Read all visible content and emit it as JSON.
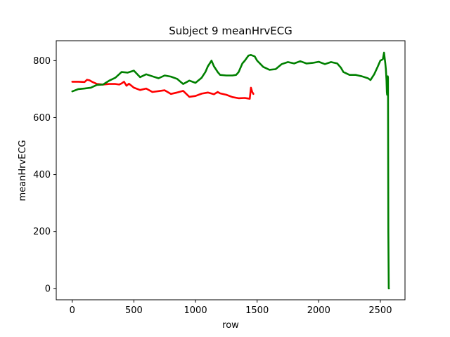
{
  "chart_data": {
    "type": "line",
    "title": "Subject 9 meanHrvECG",
    "xlabel": "row",
    "ylabel": "meanHrvECG",
    "xlim": [
      -130,
      2700
    ],
    "ylim": [
      -40,
      870
    ],
    "xticks": [
      0,
      500,
      1000,
      1500,
      2000,
      2500
    ],
    "yticks": [
      0,
      200,
      400,
      600,
      800
    ],
    "grid": false,
    "series": [
      {
        "color": "#ff0000",
        "x": [
          0,
          50,
          100,
          120,
          140,
          160,
          200,
          250,
          300,
          350,
          380,
          400,
          420,
          440,
          460,
          500,
          550,
          600,
          650,
          700,
          750,
          800,
          850,
          900,
          950,
          1000,
          1050,
          1100,
          1150,
          1180,
          1200,
          1250,
          1300,
          1350,
          1400,
          1440,
          1450,
          1460,
          1470
        ],
        "y": [
          726,
          726,
          725,
          733,
          731,
          726,
          718,
          716,
          718,
          718,
          716,
          720,
          726,
          712,
          719,
          705,
          697,
          702,
          690,
          693,
          696,
          683,
          688,
          694,
          673,
          676,
          684,
          688,
          682,
          690,
          685,
          680,
          672,
          668,
          669,
          666,
          705,
          690,
          683
        ]
      },
      {
        "color": "#008000",
        "x": [
          0,
          50,
          100,
          150,
          200,
          250,
          300,
          350,
          380,
          400,
          450,
          500,
          550,
          600,
          650,
          700,
          750,
          800,
          850,
          900,
          950,
          1000,
          1050,
          1080,
          1100,
          1130,
          1150,
          1180,
          1200,
          1250,
          1300,
          1330,
          1350,
          1380,
          1400,
          1430,
          1450,
          1480,
          1500,
          1550,
          1600,
          1650,
          1700,
          1750,
          1800,
          1850,
          1900,
          1950,
          2000,
          2050,
          2100,
          2150,
          2180,
          2200,
          2250,
          2300,
          2350,
          2400,
          2420,
          2450,
          2480,
          2500,
          2520,
          2530,
          2540,
          2545,
          2550,
          2553,
          2555,
          2558,
          2560,
          2562,
          2565,
          2568,
          2570
        ],
        "y": [
          692,
          700,
          702,
          705,
          715,
          716,
          730,
          740,
          752,
          760,
          758,
          765,
          742,
          752,
          745,
          738,
          748,
          744,
          736,
          718,
          730,
          722,
          740,
          760,
          780,
          800,
          780,
          760,
          750,
          748,
          748,
          750,
          760,
          790,
          800,
          818,
          820,
          815,
          800,
          778,
          768,
          770,
          788,
          795,
          790,
          798,
          790,
          792,
          796,
          788,
          795,
          790,
          775,
          760,
          750,
          750,
          745,
          738,
          732,
          752,
          780,
          800,
          805,
          828,
          790,
          770,
          730,
          690,
          680,
          730,
          745,
          740,
          200,
          0,
          0
        ]
      }
    ]
  }
}
